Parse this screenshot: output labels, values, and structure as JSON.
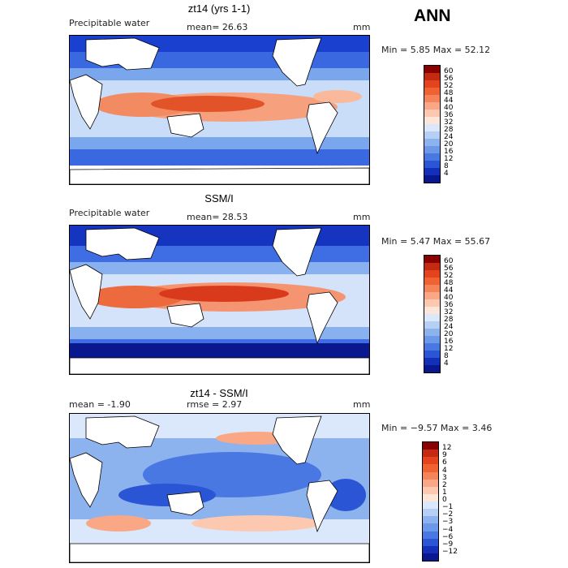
{
  "season": "ANN",
  "panels": [
    {
      "title": "zt14 (yrs 1-1)",
      "left_label": "Precipitable water",
      "mid_label": "mean=  26.63",
      "unit": "mm",
      "stats": "Min =    5.85 Max =  52.12",
      "colorbar": {
        "labels": [
          "60",
          "56",
          "52",
          "48",
          "44",
          "40",
          "36",
          "32",
          "28",
          "24",
          "20",
          "16",
          "12",
          "8",
          "4"
        ],
        "colors": [
          "#8a0000",
          "#c42a12",
          "#e3431d",
          "#f06232",
          "#f5845a",
          "#f9a784",
          "#fcc9b0",
          "#fde6d8",
          "#dbe8fb",
          "#b5cff5",
          "#8db3ef",
          "#6c98ea",
          "#4a78e2",
          "#2a56d6",
          "#1530b8",
          "#0a1890"
        ]
      }
    },
    {
      "title": "SSM/I",
      "left_label": "Precipitable water",
      "mid_label": "mean=  28.53",
      "unit": "mm",
      "stats": "Min =    5.47 Max =  55.67",
      "colorbar": {
        "labels": [
          "60",
          "56",
          "52",
          "48",
          "44",
          "40",
          "36",
          "32",
          "28",
          "24",
          "20",
          "16",
          "12",
          "8",
          "4"
        ],
        "colors": [
          "#8a0000",
          "#c42a12",
          "#e3431d",
          "#f06232",
          "#f5845a",
          "#f9a784",
          "#fcc9b0",
          "#fde6d8",
          "#dbe8fb",
          "#b5cff5",
          "#8db3ef",
          "#6c98ea",
          "#4a78e2",
          "#2a56d6",
          "#1530b8",
          "#0a1890"
        ]
      }
    },
    {
      "title": "zt14 - SSM/I",
      "left_label": "mean =   -1.90",
      "mid_label": "rmse =    2.97",
      "unit": "mm",
      "stats": "Min =  −9.57 Max =    3.46",
      "colorbar": {
        "labels": [
          "12",
          "9",
          "6",
          "4",
          "3",
          "2",
          "1",
          "0",
          "−1",
          "−2",
          "−3",
          "−4",
          "−6",
          "−9",
          "−12"
        ],
        "colors": [
          "#8a0000",
          "#c42a12",
          "#e3431d",
          "#f06232",
          "#f5845a",
          "#f9a784",
          "#fcc9b0",
          "#fde6d8",
          "#dbe8fb",
          "#b5cff5",
          "#8db3ef",
          "#6c98ea",
          "#4a78e2",
          "#2a56d6",
          "#1530b8",
          "#0a1890"
        ]
      }
    }
  ]
}
